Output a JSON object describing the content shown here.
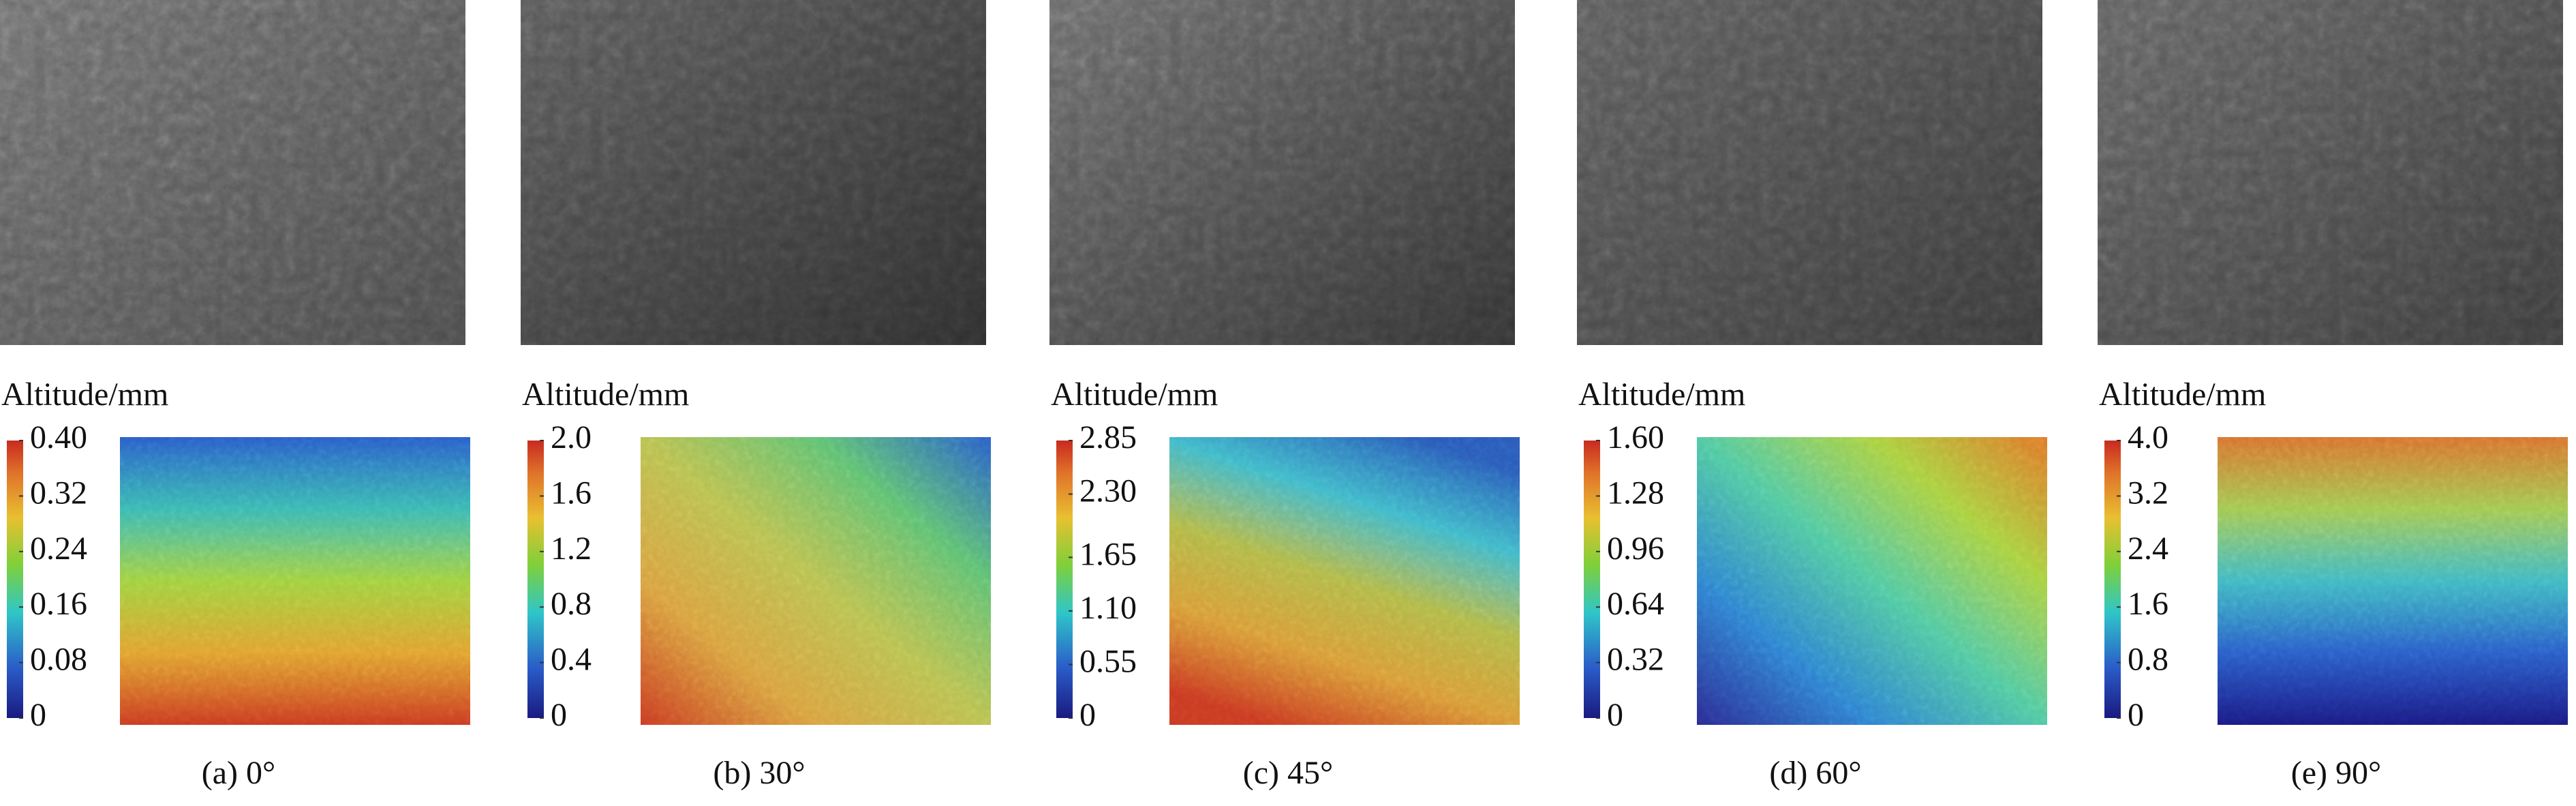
{
  "panels": [
    {
      "caption": "(a) 0°",
      "colorbar": {
        "title": "Altitude/mm",
        "ticks": [
          0,
          0.08,
          0.16,
          0.24,
          0.32,
          {
            "value": 0.4,
            "label": "0.40"
          }
        ]
      }
    },
    {
      "caption": "(b) 30°",
      "colorbar": {
        "title": "Altitude/mm",
        "ticks": [
          0,
          0.4,
          0.8,
          1.2,
          1.6,
          {
            "value": 2,
            "label": "2.0"
          }
        ]
      }
    },
    {
      "caption": "(c) 45°",
      "colorbar": {
        "title": "Altitude/mm",
        "ticks": [
          0,
          0.55,
          {
            "value": 1.1,
            "label": "1.10"
          },
          1.65,
          {
            "value": 2.3,
            "label": "2.30"
          },
          2.85
        ]
      }
    },
    {
      "caption": "(d) 60°",
      "colorbar": {
        "title": "Altitude/mm",
        "ticks": [
          0,
          0.32,
          0.64,
          0.96,
          1.28,
          {
            "value": 1.6,
            "label": "1.60"
          }
        ]
      }
    },
    {
      "caption": "(e) 90°",
      "colorbar": {
        "title": "Altitude/mm",
        "ticks": [
          0,
          0.8,
          1.6,
          2.4,
          3.2,
          {
            "value": 4,
            "label": "4.0"
          }
        ]
      }
    }
  ]
}
